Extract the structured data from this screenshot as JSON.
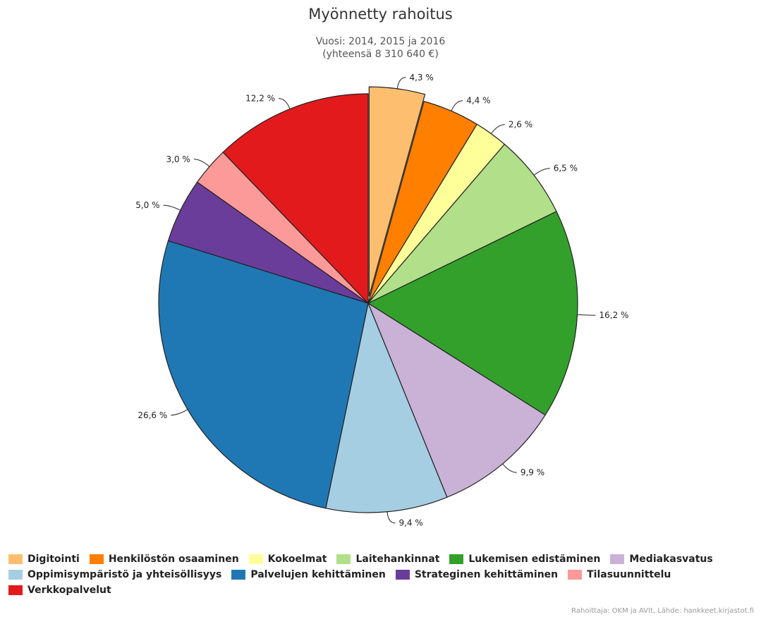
{
  "chart_data": {
    "type": "pie",
    "title": "Myönnetty rahoitus",
    "subtitle": [
      "Vuosi: 2014, 2015 ja 2016",
      "(yhteensä 8 310 640 €)"
    ],
    "legend_position": "bottom",
    "slices": [
      {
        "name": "Digitointi",
        "value": 4.3,
        "label": "4,3 %",
        "color": "#fdbf6f",
        "selected": true
      },
      {
        "name": "Henkilöstön osaaminen",
        "value": 4.4,
        "label": "4,4 %",
        "color": "#ff7f00"
      },
      {
        "name": "Kokoelmat",
        "value": 2.6,
        "label": "2,6 %",
        "color": "#ffff99"
      },
      {
        "name": "Laitehankinnat",
        "value": 6.5,
        "label": "6,5 %",
        "color": "#b2df8a"
      },
      {
        "name": "Lukemisen edistäminen",
        "value": 16.2,
        "label": "16,2 %",
        "color": "#33a02c"
      },
      {
        "name": "Mediakasvatus",
        "value": 9.9,
        "label": "9,9 %",
        "color": "#cab2d6"
      },
      {
        "name": "Oppimisympäristö ja yhteisöllisyys",
        "value": 9.4,
        "label": "9,4 %",
        "color": "#a6cee3"
      },
      {
        "name": "Palvelujen kehittäminen",
        "value": 26.6,
        "label": "26,6 %",
        "color": "#1f78b4"
      },
      {
        "name": "Strateginen kehittäminen",
        "value": 5.0,
        "label": "5,0 %",
        "color": "#6a3d9a"
      },
      {
        "name": "Tilasuunnittelu",
        "value": 3.0,
        "label": "3,0 %",
        "color": "#fb9a99"
      },
      {
        "name": "Verkkopalvelut",
        "value": 12.2,
        "label": "12,2 %",
        "color": "#e31a1c"
      }
    ]
  },
  "credits": "Rahoittaja: OKM ja AVIt, Lähde: hankkeet.kirjastot.fi"
}
